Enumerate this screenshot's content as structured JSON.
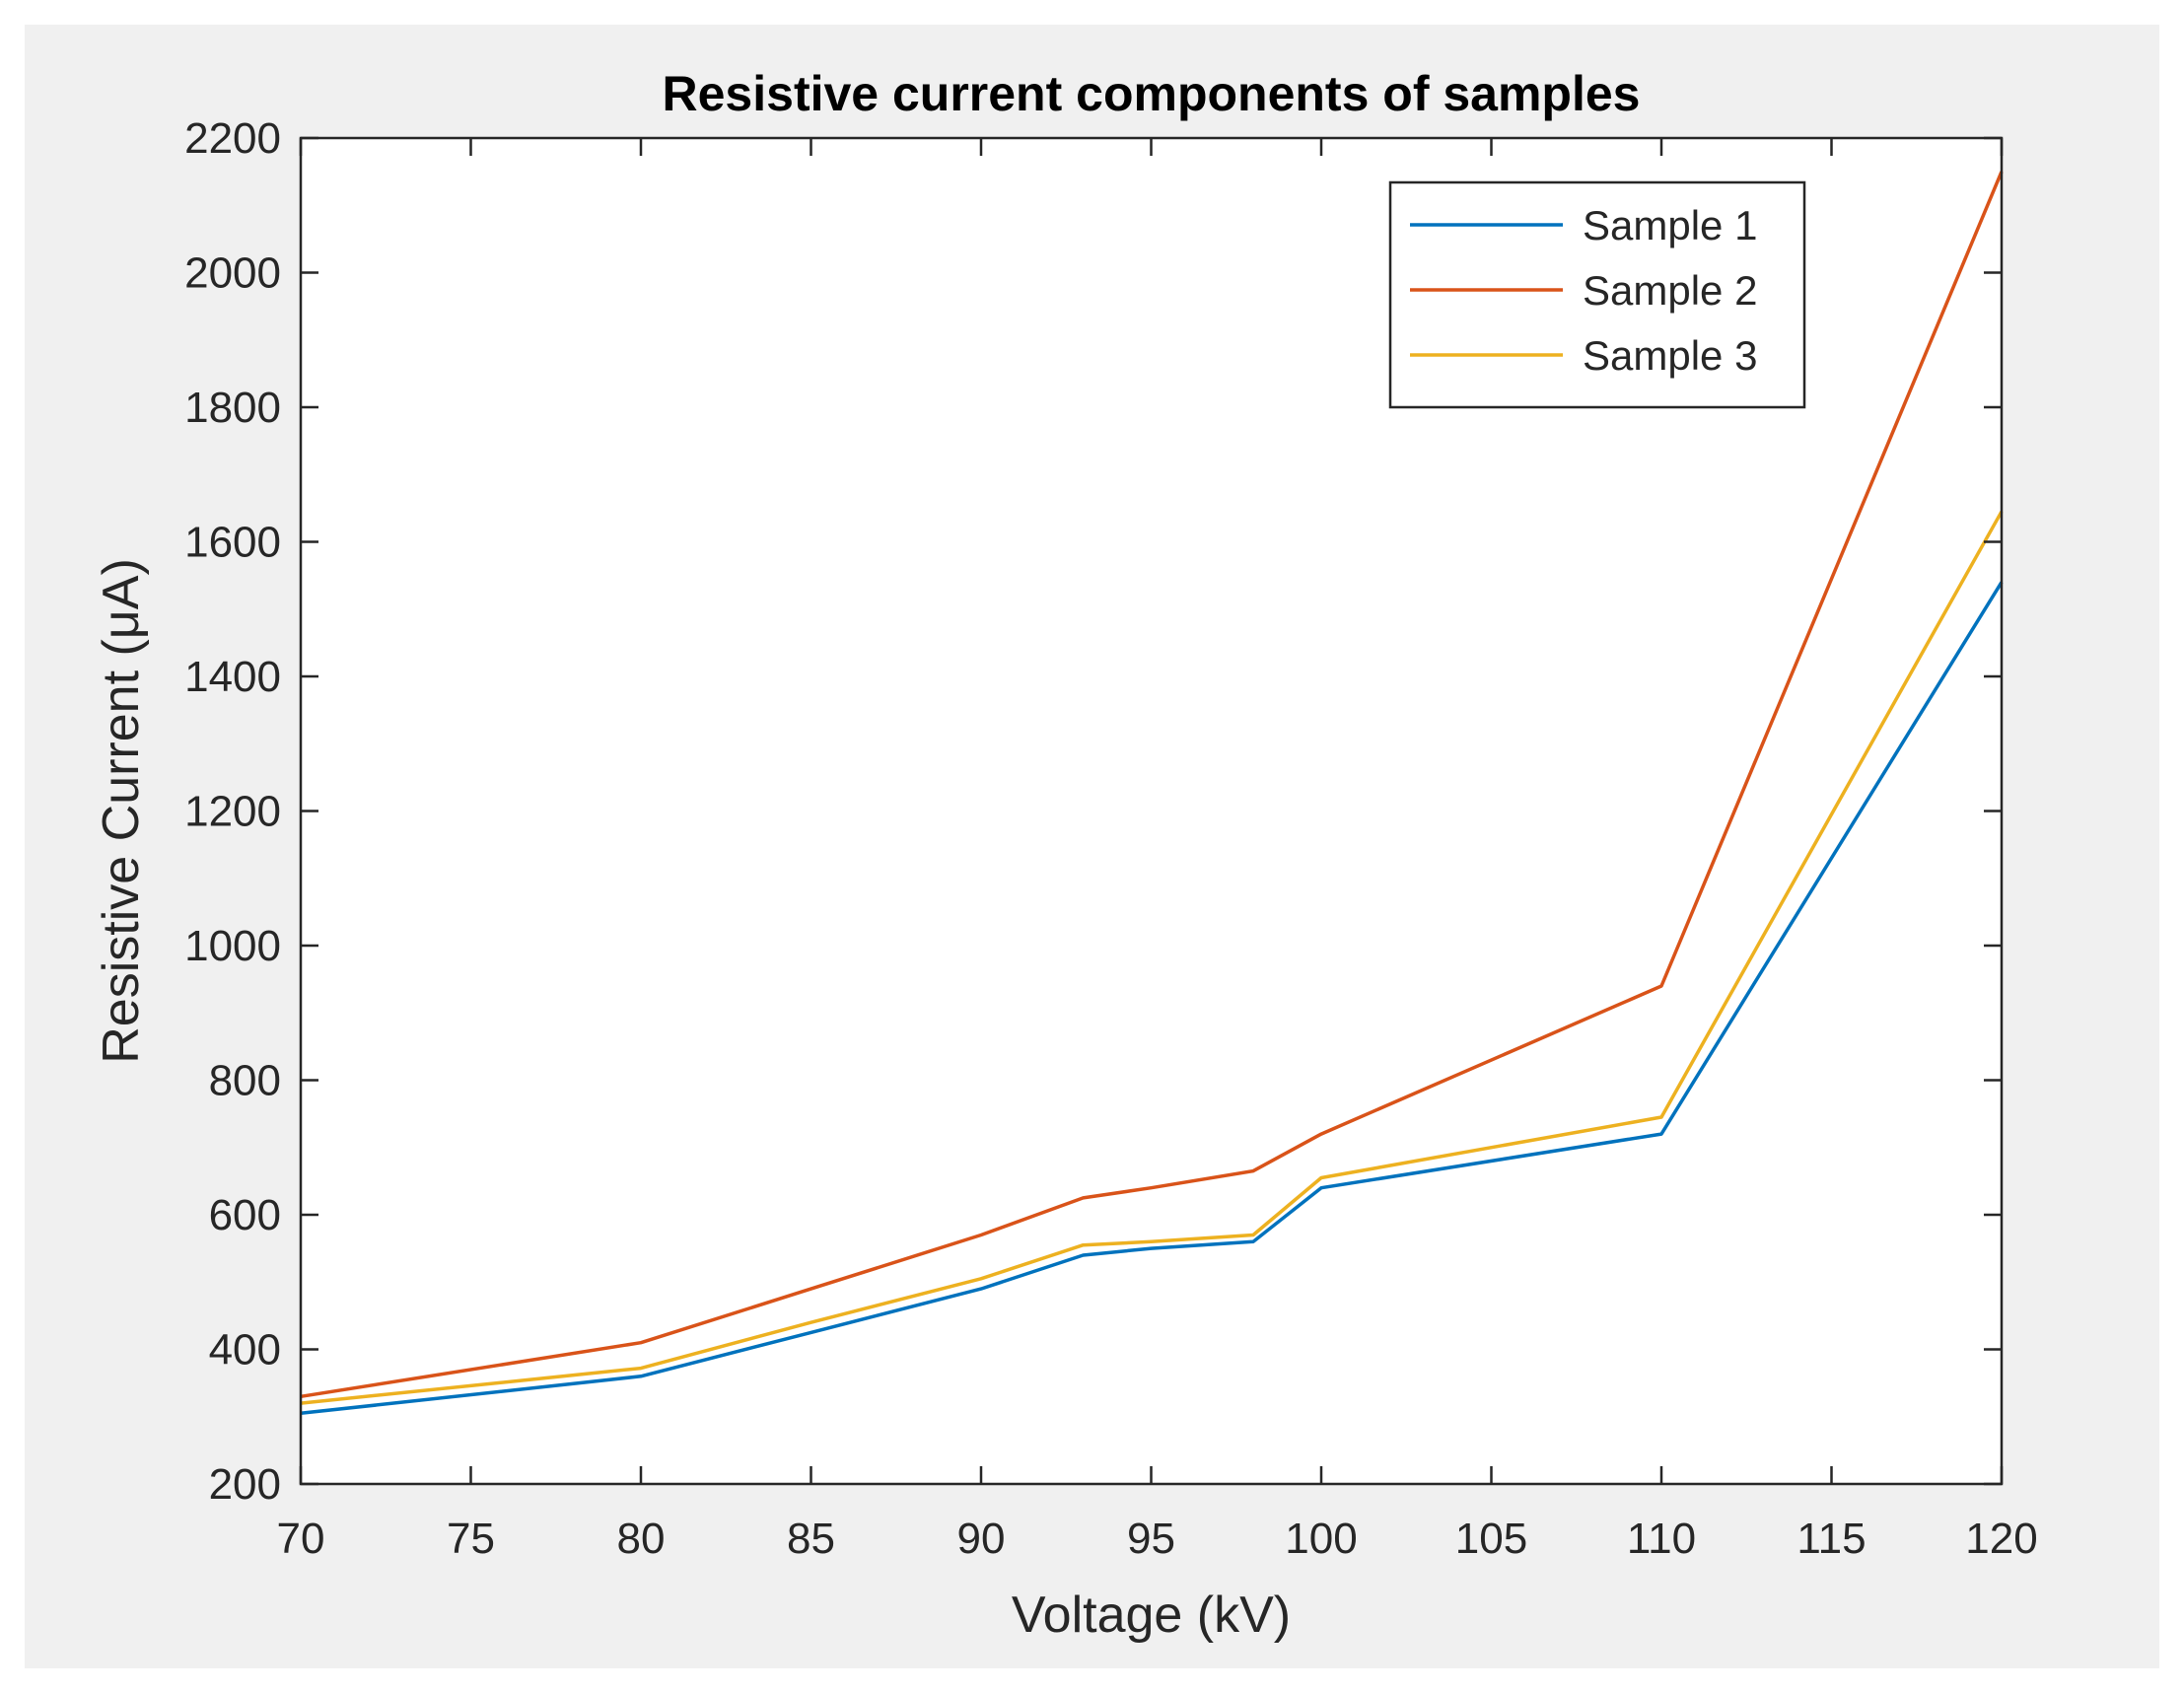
{
  "chart_data": {
    "type": "line",
    "title": "Resistive current components of samples",
    "xlabel": "Voltage (kV)",
    "ylabel": "Resistive Current (μA)",
    "xlim": [
      70,
      120
    ],
    "ylim": [
      200,
      2200
    ],
    "xticks": [
      70,
      75,
      80,
      85,
      90,
      95,
      100,
      105,
      110,
      115,
      120
    ],
    "yticks": [
      200,
      400,
      600,
      800,
      1000,
      1200,
      1400,
      1600,
      1800,
      2000,
      2200
    ],
    "grid": false,
    "legend_position": "top-right",
    "series": [
      {
        "name": "Sample 1",
        "color": "#0072bd",
        "x": [
          70,
          80,
          85,
          90,
          93,
          95,
          98,
          100,
          110,
          120
        ],
        "y": [
          305,
          360,
          425,
          490,
          540,
          550,
          560,
          640,
          720,
          1540
        ]
      },
      {
        "name": "Sample 2",
        "color": "#d95319",
        "x": [
          70,
          80,
          85,
          90,
          93,
          95,
          98,
          100,
          110,
          120
        ],
        "y": [
          330,
          410,
          490,
          570,
          625,
          640,
          665,
          720,
          940,
          2150
        ]
      },
      {
        "name": "Sample 3",
        "color": "#edb120",
        "x": [
          70,
          80,
          85,
          90,
          93,
          95,
          98,
          100,
          110,
          120
        ],
        "y": [
          320,
          372,
          440,
          505,
          555,
          560,
          570,
          655,
          745,
          1645
        ]
      }
    ]
  }
}
